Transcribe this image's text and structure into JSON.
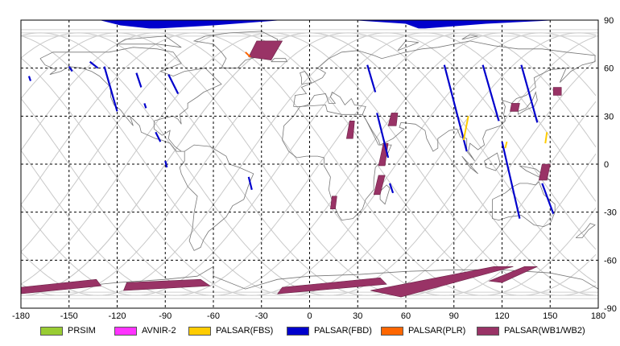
{
  "map": {
    "lon_ticks": [
      "-180",
      "-150",
      "-120",
      "-90",
      "-60",
      "-30",
      "0",
      "30",
      "60",
      "90",
      "120",
      "150",
      "180"
    ],
    "lat_ticks": [
      "90",
      "60",
      "30",
      "0",
      "-30",
      "-60",
      "-90"
    ],
    "lon_range": [
      -180,
      180
    ],
    "lat_range": [
      -90,
      90
    ],
    "grid": "dashed",
    "background": "world coastlines with ground-track orbit arcs"
  },
  "legend": {
    "items": [
      {
        "label": "PRSIM",
        "color": "#99cc33"
      },
      {
        "label": "AVNIR-2",
        "color": "#ff33ff"
      },
      {
        "label": "PALSAR(FBS)",
        "color": "#ffcc00"
      },
      {
        "label": "PALSAR(FBD)",
        "color": "#0000cc"
      },
      {
        "label": "PALSAR(PLR)",
        "color": "#ff6600"
      },
      {
        "label": "PALSAR(WB1/WB2)",
        "color": "#993366"
      }
    ]
  },
  "coverage": {
    "fbd_tracks": [
      [
        [
          -128,
          61
        ],
        [
          -120,
          33
        ]
      ],
      [
        [
          -137,
          64
        ],
        [
          -132,
          60
        ]
      ],
      [
        [
          -175,
          55
        ],
        [
          -174,
          52
        ]
      ],
      [
        [
          -108,
          57
        ],
        [
          -105,
          48
        ]
      ],
      [
        [
          -88,
          56
        ],
        [
          -82,
          44
        ]
      ],
      [
        [
          -96,
          20
        ],
        [
          -93,
          14
        ]
      ],
      [
        [
          -90,
          2
        ],
        [
          -89,
          -2
        ]
      ],
      [
        [
          -103,
          38
        ],
        [
          -102,
          35
        ]
      ],
      [
        [
          -38,
          -8
        ],
        [
          -36,
          -16
        ]
      ],
      [
        [
          36,
          62
        ],
        [
          41,
          45
        ]
      ],
      [
        [
          42,
          32
        ],
        [
          49,
          4
        ]
      ],
      [
        [
          50,
          -12
        ],
        [
          52,
          -18
        ]
      ],
      [
        [
          84,
          62
        ],
        [
          98,
          8
        ]
      ],
      [
        [
          108,
          62
        ],
        [
          118,
          27
        ]
      ],
      [
        [
          132,
          62
        ],
        [
          142,
          26
        ]
      ],
      [
        [
          120,
          14
        ],
        [
          131,
          -34
        ]
      ],
      [
        [
          145,
          -12
        ],
        [
          152,
          -31
        ]
      ],
      [
        [
          -150,
          61
        ],
        [
          -148,
          58
        ]
      ]
    ],
    "fbs_tracks": [
      [
        [
          99,
          30
        ],
        [
          96,
          15
        ]
      ],
      [
        [
          148,
          20
        ],
        [
          147,
          13
        ]
      ],
      [
        [
          123,
          14
        ],
        [
          122,
          10
        ]
      ]
    ],
    "plr_tracks": [
      [
        [
          -40,
          70
        ],
        [
          -37,
          67
        ]
      ]
    ],
    "wb_swaths": [
      [
        [
          -33,
          77
        ],
        [
          -17,
          77
        ],
        [
          -24,
          65
        ],
        [
          -38,
          67
        ]
      ],
      [
        [
          25,
          27
        ],
        [
          28,
          27
        ],
        [
          27,
          16
        ],
        [
          23,
          16
        ]
      ],
      [
        [
          51,
          32
        ],
        [
          55,
          32
        ],
        [
          54,
          24
        ],
        [
          49,
          24
        ]
      ],
      [
        [
          46,
          13
        ],
        [
          49,
          13
        ],
        [
          47,
          -1
        ],
        [
          43,
          -1
        ]
      ],
      [
        [
          43,
          -7
        ],
        [
          47,
          -7
        ],
        [
          44,
          -19
        ],
        [
          40,
          -19
        ]
      ],
      [
        [
          14,
          -20
        ],
        [
          17,
          -20
        ],
        [
          16,
          -28
        ],
        [
          13,
          -28
        ]
      ],
      [
        [
          126,
          38
        ],
        [
          131,
          38
        ],
        [
          130,
          33
        ],
        [
          125,
          33
        ]
      ],
      [
        [
          152,
          48
        ],
        [
          157,
          48
        ],
        [
          157,
          43
        ],
        [
          152,
          43
        ]
      ],
      [
        [
          145,
          0
        ],
        [
          150,
          0
        ],
        [
          148,
          -10
        ],
        [
          143,
          -10
        ]
      ],
      [
        [
          -180,
          -77
        ],
        [
          -133,
          -72
        ],
        [
          -130,
          -76
        ],
        [
          -180,
          -81
        ]
      ],
      [
        [
          -114,
          -74
        ],
        [
          -68,
          -72
        ],
        [
          -62,
          -76
        ],
        [
          -116,
          -79
        ]
      ],
      [
        [
          -17,
          -77
        ],
        [
          44,
          -71
        ],
        [
          48,
          -75
        ],
        [
          -20,
          -81
        ]
      ],
      [
        [
          38,
          -79
        ],
        [
          115,
          -64
        ],
        [
          127,
          -64
        ],
        [
          57,
          -83
        ]
      ],
      [
        [
          112,
          -73
        ],
        [
          134,
          -64
        ],
        [
          142,
          -64
        ],
        [
          120,
          -74
        ]
      ]
    ],
    "fbd_polar_fill": [
      [
        [
          -130,
          90
        ],
        [
          -118,
          87
        ],
        [
          -100,
          85
        ],
        [
          -94,
          85
        ],
        [
          -60,
          87
        ],
        [
          -20,
          90
        ]
      ],
      [
        [
          30,
          90
        ],
        [
          60,
          88
        ],
        [
          68,
          85
        ],
        [
          72,
          85
        ],
        [
          110,
          88
        ],
        [
          150,
          90
        ]
      ]
    ]
  }
}
